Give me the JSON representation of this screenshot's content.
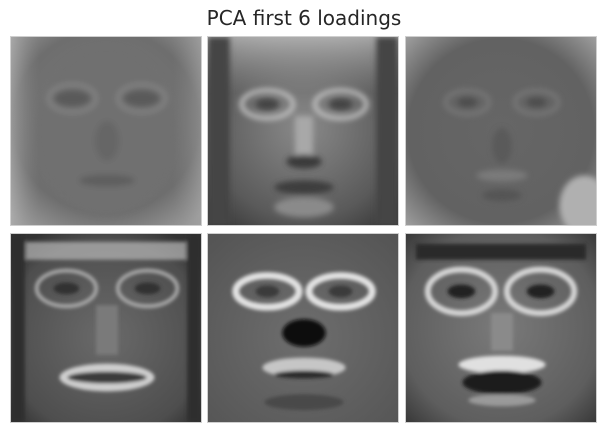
{
  "figure": {
    "title": "PCA first 6 loadings"
  },
  "panels": [
    {
      "index": 1,
      "content": "eigenface-loading"
    },
    {
      "index": 2,
      "content": "eigenface-loading"
    },
    {
      "index": 3,
      "content": "eigenface-loading"
    },
    {
      "index": 4,
      "content": "eigenface-loading"
    },
    {
      "index": 5,
      "content": "eigenface-loading"
    },
    {
      "index": 6,
      "content": "eigenface-loading"
    }
  ],
  "colors": {
    "panel_border": "#cfcfcf",
    "title_text": "#262626"
  }
}
